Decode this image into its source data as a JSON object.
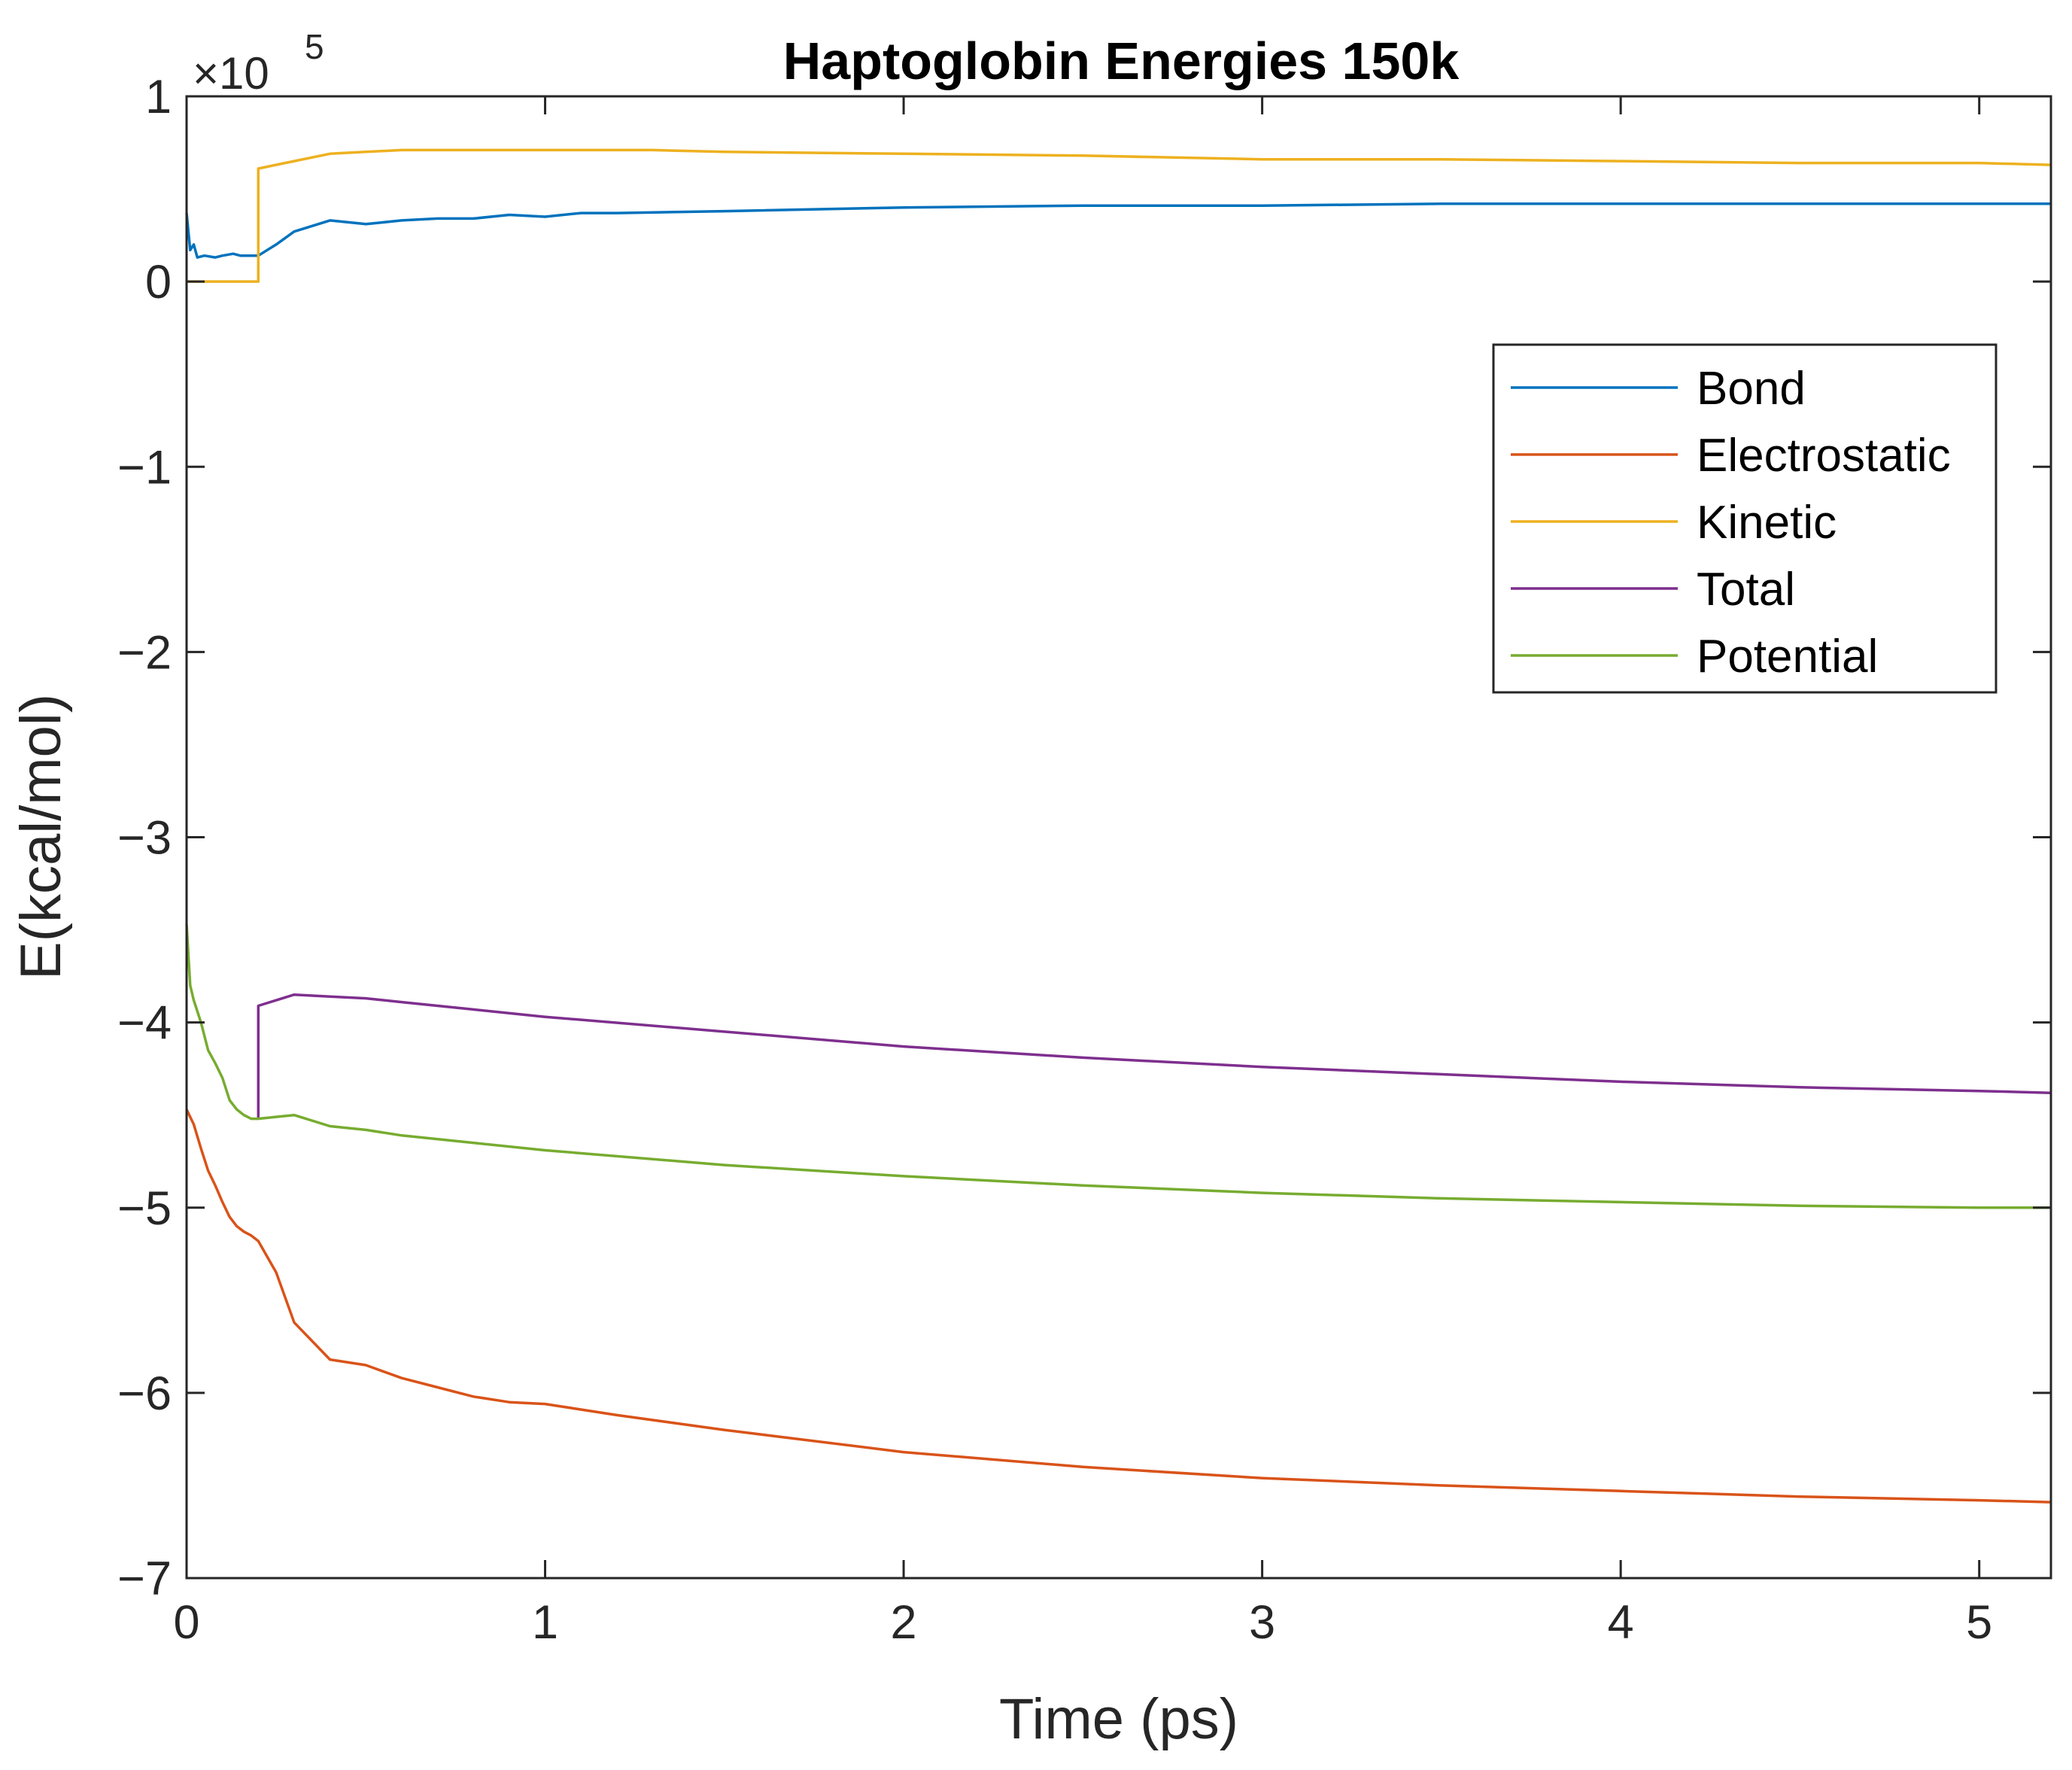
{
  "chart_data": {
    "type": "line",
    "title": "Haptoglobin Energies 150k",
    "xlabel": "Time (ps)",
    "ylabel": "E(kcal/mol)",
    "y_multiplier_label": "×10",
    "y_multiplier_exponent": "5",
    "xlim": [
      0,
      5.2
    ],
    "ylim": [
      -7,
      1
    ],
    "x_ticks": [
      0,
      1,
      2,
      3,
      4,
      5
    ],
    "x_tick_labels": [
      "0",
      "1",
      "2",
      "3",
      "4",
      "5"
    ],
    "y_ticks": [
      1,
      0,
      -1,
      -2,
      -3,
      -4,
      -5,
      -6,
      -7
    ],
    "y_tick_labels": [
      "1",
      "0",
      "−1",
      "−2",
      "−3",
      "−4",
      "−5",
      "−6",
      "−7"
    ],
    "grid": false,
    "legend_position": "top-right",
    "series": [
      {
        "name": "Bond",
        "color": "#0072BD",
        "x": [
          0,
          0.01,
          0.02,
          0.03,
          0.05,
          0.08,
          0.1,
          0.13,
          0.15,
          0.18,
          0.2,
          0.25,
          0.3,
          0.4,
          0.5,
          0.6,
          0.7,
          0.8,
          0.9,
          1.0,
          1.1,
          1.2,
          1.5,
          2.0,
          2.5,
          3.0,
          3.5,
          4.0,
          4.5,
          5.0,
          5.2
        ],
        "y": [
          0.37,
          0.17,
          0.2,
          0.13,
          0.14,
          0.13,
          0.14,
          0.15,
          0.14,
          0.14,
          0.14,
          0.2,
          0.27,
          0.33,
          0.31,
          0.33,
          0.34,
          0.34,
          0.36,
          0.35,
          0.37,
          0.37,
          0.38,
          0.4,
          0.41,
          0.41,
          0.42,
          0.42,
          0.42,
          0.42,
          0.42
        ]
      },
      {
        "name": "Electrostatic",
        "color": "#D95319",
        "x": [
          0,
          0.02,
          0.04,
          0.06,
          0.08,
          0.1,
          0.12,
          0.14,
          0.16,
          0.18,
          0.2,
          0.25,
          0.3,
          0.4,
          0.5,
          0.6,
          0.7,
          0.8,
          0.9,
          1.0,
          1.2,
          1.5,
          2.0,
          2.5,
          3.0,
          3.5,
          4.0,
          4.5,
          5.0,
          5.2
        ],
        "y": [
          -4.47,
          -4.55,
          -4.68,
          -4.8,
          -4.88,
          -4.97,
          -5.05,
          -5.1,
          -5.13,
          -5.15,
          -5.18,
          -5.35,
          -5.62,
          -5.82,
          -5.85,
          -5.92,
          -5.97,
          -6.02,
          -6.05,
          -6.06,
          -6.12,
          -6.2,
          -6.32,
          -6.4,
          -6.46,
          -6.5,
          -6.53,
          -6.56,
          -6.58,
          -6.59
        ]
      },
      {
        "name": "Kinetic",
        "color": "#EDB120",
        "x": [
          0,
          0.2,
          0.2,
          0.3,
          0.4,
          0.5,
          0.6,
          0.8,
          1.0,
          1.3,
          1.5,
          2.0,
          2.5,
          3.0,
          3.5,
          4.0,
          4.5,
          5.0,
          5.2
        ],
        "y": [
          0,
          0,
          0.61,
          0.65,
          0.69,
          0.7,
          0.71,
          0.71,
          0.71,
          0.71,
          0.7,
          0.69,
          0.68,
          0.66,
          0.66,
          0.65,
          0.64,
          0.64,
          0.63
        ]
      },
      {
        "name": "Total",
        "color": "#7E2F8E",
        "x": [
          0.2,
          0.2,
          0.3,
          0.4,
          0.5,
          0.6,
          0.8,
          1.0,
          1.5,
          2.0,
          2.5,
          3.0,
          3.5,
          4.0,
          4.5,
          5.0,
          5.2
        ],
        "y": [
          -4.52,
          -3.91,
          -3.85,
          -3.86,
          -3.87,
          -3.89,
          -3.93,
          -3.97,
          -4.05,
          -4.13,
          -4.19,
          -4.24,
          -4.28,
          -4.32,
          -4.35,
          -4.37,
          -4.38
        ]
      },
      {
        "name": "Potential",
        "color": "#77AC30",
        "x": [
          0,
          0.01,
          0.02,
          0.04,
          0.06,
          0.08,
          0.1,
          0.12,
          0.14,
          0.16,
          0.18,
          0.2,
          0.25,
          0.3,
          0.4,
          0.5,
          0.6,
          0.8,
          1.0,
          1.5,
          2.0,
          2.5,
          3.0,
          3.5,
          4.0,
          4.5,
          5.0,
          5.2
        ],
        "y": [
          -3.47,
          -3.8,
          -3.88,
          -4.0,
          -4.15,
          -4.22,
          -4.3,
          -4.42,
          -4.47,
          -4.5,
          -4.52,
          -4.52,
          -4.51,
          -4.5,
          -4.56,
          -4.58,
          -4.61,
          -4.65,
          -4.69,
          -4.77,
          -4.83,
          -4.88,
          -4.92,
          -4.95,
          -4.97,
          -4.99,
          -5.0,
          -5.0
        ]
      }
    ]
  }
}
